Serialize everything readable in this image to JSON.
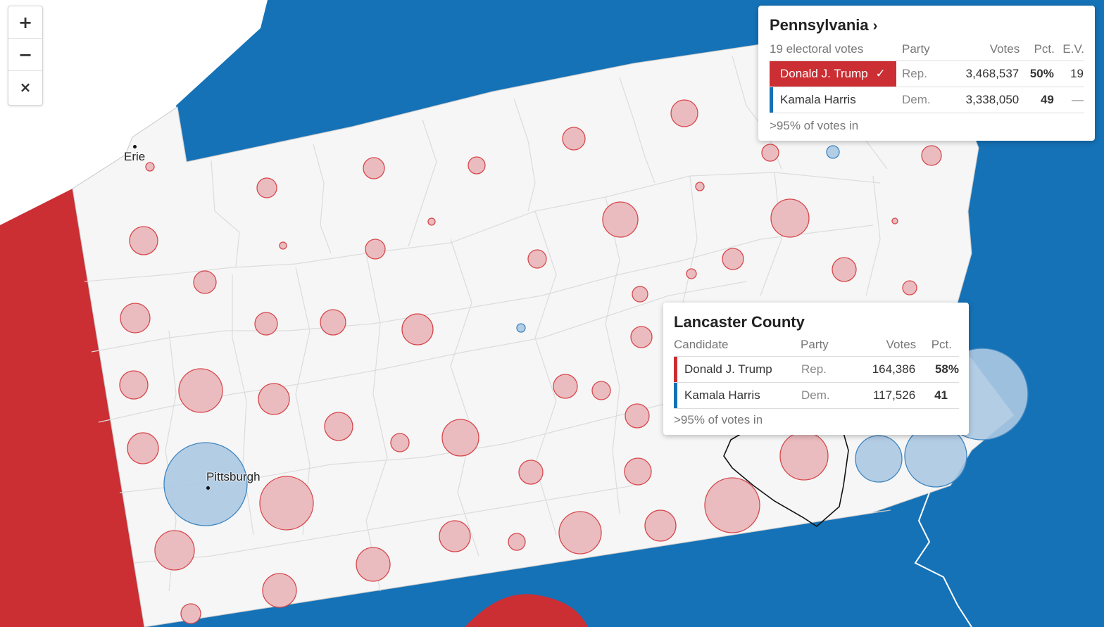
{
  "zoom_controls": {
    "zoom_in": "+",
    "zoom_out": "−",
    "close": "×"
  },
  "cities": [
    {
      "name": "Erie"
    },
    {
      "name": "Pittsburgh"
    }
  ],
  "colors": {
    "republican": "#cb2e33",
    "democrat": "#1572b7",
    "rep_bubble_fill": "#ebbcbf",
    "dem_bubble_fill": "#acc9e3",
    "state_fill": "#f6f6f6"
  },
  "state_panel": {
    "title": "Pennsylvania",
    "title_icon": "chevron-right-icon",
    "subtitle": "19 electoral votes",
    "headers": {
      "party": "Party",
      "votes": "Votes",
      "pct": "Pct.",
      "ev": "E.V."
    },
    "rows": [
      {
        "candidate": "Donald J. Trump",
        "party": "Rep.",
        "votes": "3,468,537",
        "pct": "50%",
        "ev": "19",
        "winner": true,
        "winner_icon": "check-icon"
      },
      {
        "candidate": "Kamala Harris",
        "party": "Dem.",
        "votes": "3,338,050",
        "pct": "49",
        "ev": "—",
        "winner": false
      }
    ],
    "footer": ">95% of votes in"
  },
  "county_panel": {
    "title": "Lancaster County",
    "headers": {
      "candidate": "Candidate",
      "party": "Party",
      "votes": "Votes",
      "pct": "Pct."
    },
    "rows": [
      {
        "candidate": "Donald J. Trump",
        "party": "Rep.",
        "votes": "164,386",
        "pct": "58%"
      },
      {
        "candidate": "Kamala Harris",
        "party": "Dem.",
        "votes": "117,526",
        "pct": "41"
      }
    ],
    "footer": ">95% of votes in"
  }
}
